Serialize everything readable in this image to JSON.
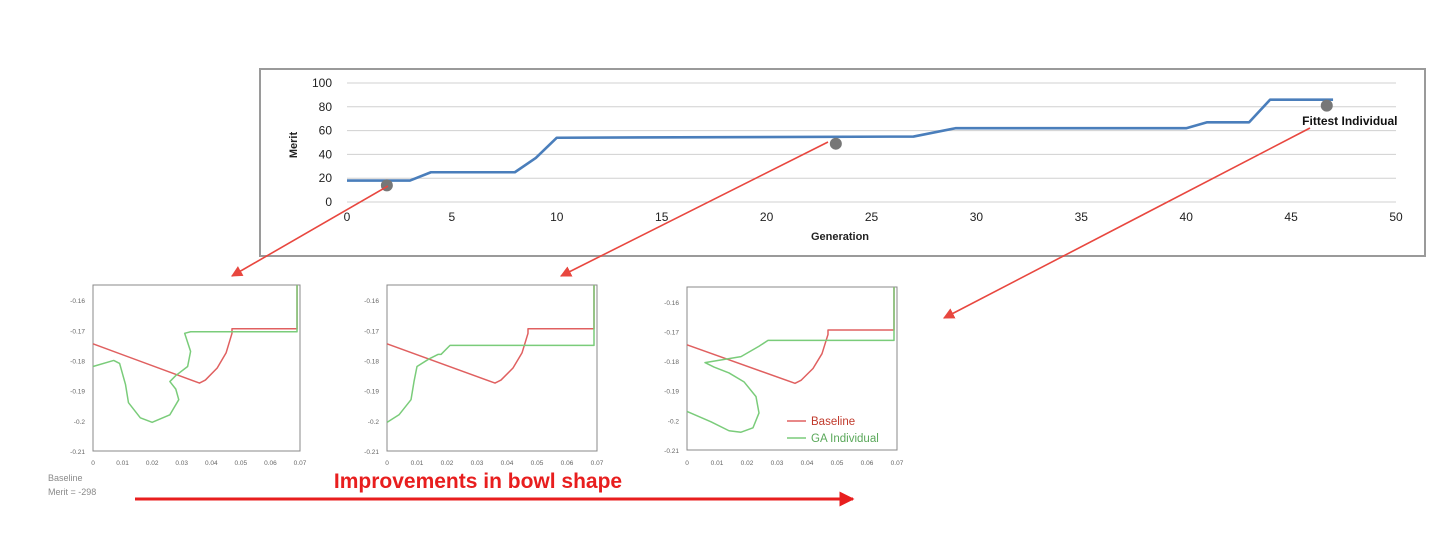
{
  "chart_data": [
    {
      "type": "line",
      "xlabel": "Generation",
      "ylabel": "Merit",
      "xlim": [
        0,
        50
      ],
      "ylim": [
        0,
        100
      ],
      "xticks": [
        0,
        5,
        10,
        15,
        20,
        25,
        30,
        35,
        40,
        45,
        50
      ],
      "yticks": [
        0,
        20,
        40,
        60,
        80,
        100
      ],
      "grid": true,
      "series": [
        {
          "name": "Merit",
          "color": "#4a7ebb",
          "x": [
            0,
            3,
            4,
            8,
            9,
            10,
            27,
            29,
            40,
            41,
            43,
            44,
            47
          ],
          "y": [
            18,
            18,
            25,
            25,
            37,
            54,
            55,
            62,
            62,
            67,
            67,
            86,
            86
          ]
        }
      ],
      "markers": [
        {
          "x": 1.9,
          "y": 14
        },
        {
          "x": 23.3,
          "y": 49
        },
        {
          "x": 46.7,
          "y": 81
        }
      ],
      "marker_color": "#777777",
      "annotations": [
        {
          "text": "Fittest Individual",
          "x": 47.8,
          "y": 68
        }
      ]
    },
    {
      "type": "line",
      "xlim": [
        0,
        0.07
      ],
      "ylim": [
        -0.21,
        -0.155
      ],
      "xticks": [
        "0",
        "0.01",
        "0.02",
        "0.03",
        "0.04",
        "0.05",
        "0.06",
        "0.07"
      ],
      "yticks": [
        "-0.16",
        "-0.17",
        "-0.18",
        "-0.19",
        "-0.2",
        "-0.21"
      ],
      "series": [
        {
          "name": "Baseline",
          "color": "#e06060",
          "x": [
            0,
            0.036,
            0.038,
            0.042,
            0.045,
            0.047,
            0.047,
            0.069,
            0.069
          ],
          "y": [
            -0.1745,
            -0.1875,
            -0.1865,
            -0.1825,
            -0.1775,
            -0.171,
            -0.1695,
            -0.1695,
            -0.155
          ]
        },
        {
          "name": "GA Individual",
          "color": "#7acc7a",
          "x": [
            0,
            0.007,
            0.009,
            0.011,
            0.012,
            0.016,
            0.02,
            0.026,
            0.029,
            0.028,
            0.026,
            0.028,
            0.032,
            0.033,
            0.032,
            0.031,
            0.033,
            0.069,
            0.069
          ],
          "y": [
            -0.182,
            -0.18,
            -0.181,
            -0.188,
            -0.194,
            -0.199,
            -0.2005,
            -0.198,
            -0.193,
            -0.1895,
            -0.187,
            -0.185,
            -0.182,
            -0.177,
            -0.174,
            -0.171,
            -0.1705,
            -0.1705,
            -0.155
          ]
        }
      ]
    },
    {
      "type": "line",
      "xlim": [
        0,
        0.07
      ],
      "ylim": [
        -0.21,
        -0.155
      ],
      "xticks": [
        "0",
        "0.01",
        "0.02",
        "0.03",
        "0.04",
        "0.05",
        "0.06",
        "0.07"
      ],
      "yticks": [
        "-0.16",
        "-0.17",
        "-0.18",
        "-0.19",
        "-0.2",
        "-0.21"
      ],
      "series": [
        {
          "name": "Baseline",
          "color": "#e06060",
          "x": [
            0,
            0.036,
            0.038,
            0.042,
            0.045,
            0.047,
            0.047,
            0.069,
            0.069
          ],
          "y": [
            -0.1745,
            -0.1875,
            -0.1865,
            -0.1825,
            -0.1775,
            -0.171,
            -0.1695,
            -0.1695,
            -0.155
          ]
        },
        {
          "name": "GA Individual",
          "color": "#7acc7a",
          "x": [
            0,
            0.004,
            0.008,
            0.009,
            0.01,
            0.014,
            0.017,
            0.018,
            0.021,
            0.069,
            0.069
          ],
          "y": [
            -0.2005,
            -0.198,
            -0.193,
            -0.187,
            -0.182,
            -0.1795,
            -0.178,
            -0.178,
            -0.175,
            -0.175,
            -0.155
          ]
        }
      ]
    },
    {
      "type": "line",
      "xlim": [
        0,
        0.07
      ],
      "ylim": [
        -0.21,
        -0.155
      ],
      "xticks": [
        "0",
        "0.01",
        "0.02",
        "0.03",
        "0.04",
        "0.05",
        "0.06",
        "0.07"
      ],
      "yticks": [
        "-0.16",
        "-0.17",
        "-0.18",
        "-0.19",
        "-0.2",
        "-0.21"
      ],
      "legend": "bottom-right",
      "series": [
        {
          "name": "Baseline",
          "color": "#e06060",
          "x": [
            0,
            0.036,
            0.038,
            0.042,
            0.045,
            0.047,
            0.047,
            0.069,
            0.069
          ],
          "y": [
            -0.1745,
            -0.1875,
            -0.1865,
            -0.1825,
            -0.1775,
            -0.171,
            -0.1695,
            -0.1695,
            -0.155
          ]
        },
        {
          "name": "GA Individual",
          "color": "#7acc7a",
          "x": [
            0,
            0.008,
            0.014,
            0.018,
            0.022,
            0.024,
            0.023,
            0.019,
            0.014,
            0.009,
            0.006,
            0.012,
            0.018,
            0.024,
            0.027,
            0.069,
            0.069
          ],
          "y": [
            -0.197,
            -0.2005,
            -0.2035,
            -0.204,
            -0.2025,
            -0.1975,
            -0.192,
            -0.187,
            -0.184,
            -0.182,
            -0.1805,
            -0.1795,
            -0.1785,
            -0.175,
            -0.173,
            -0.173,
            -0.155
          ]
        }
      ]
    }
  ],
  "baseline_caption": {
    "line1": "Baseline",
    "line2": "Merit = -298"
  },
  "improvement_caption": "Improvements in bowl shape",
  "colors": {
    "arrow": "#e8473f",
    "caption": "#e81e1e",
    "panel_border": "#888888",
    "gridline": "#d0d0d0",
    "axis": "#666666"
  }
}
